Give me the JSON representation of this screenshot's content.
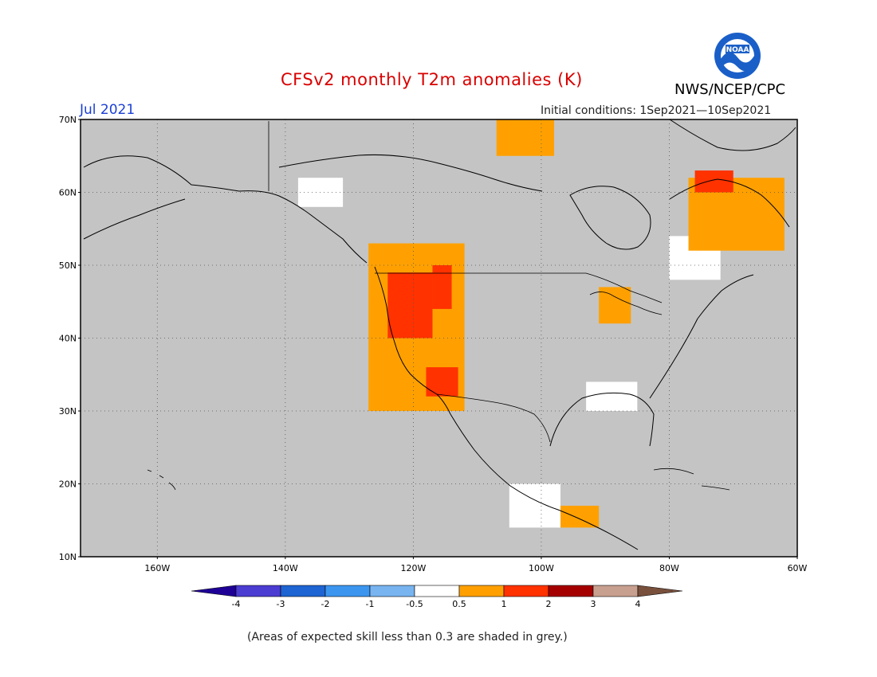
{
  "title": "CFSv2 monthly T2m anomalies (K)",
  "month_label": "Jul 2021",
  "agency": "NWS/NCEP/CPC",
  "logo_text": "NOAA",
  "initial_conditions": "Initial conditions: 1Sep2021—10Sep2021",
  "footnote": "(Areas of expected skill less than 0.3 are shaded in grey.)",
  "map": {
    "lon_range": [
      -172,
      -60
    ],
    "lat_range": [
      10,
      70
    ],
    "lat_ticks": [
      {
        "value": 10,
        "label": "10N"
      },
      {
        "value": 20,
        "label": "20N"
      },
      {
        "value": 30,
        "label": "30N"
      },
      {
        "value": 40,
        "label": "40N"
      },
      {
        "value": 50,
        "label": "50N"
      },
      {
        "value": 60,
        "label": "60N"
      },
      {
        "value": 70,
        "label": "70N"
      }
    ],
    "lon_ticks": [
      {
        "value": -160,
        "label": "160W"
      },
      {
        "value": -140,
        "label": "140W"
      },
      {
        "value": -120,
        "label": "120W"
      },
      {
        "value": -100,
        "label": "100W"
      },
      {
        "value": -80,
        "label": "80W"
      },
      {
        "value": -60,
        "label": "60W"
      }
    ],
    "gridlines": "dotted",
    "colors": {
      "low_skill": "#c4c4c4",
      "neutral": "#ffffff",
      "coast": "#000000"
    },
    "anomaly_patches": [
      {
        "level": "0.5 to 1",
        "color": "#ffa000",
        "lon": [
          -127,
          -112
        ],
        "lat": [
          30,
          53
        ]
      },
      {
        "level": "1 to 2",
        "color": "#ff3200",
        "lon": [
          -124,
          -117
        ],
        "lat": [
          40,
          49
        ]
      },
      {
        "level": "1 to 2",
        "color": "#ff3200",
        "lon": [
          -117,
          -114
        ],
        "lat": [
          44,
          50
        ]
      },
      {
        "level": "1 to 2",
        "color": "#ff3200",
        "lon": [
          -118,
          -113
        ],
        "lat": [
          32,
          36
        ]
      },
      {
        "level": "0.5 to 1",
        "color": "#ffa000",
        "lon": [
          -77,
          -62
        ],
        "lat": [
          52,
          62
        ]
      },
      {
        "level": "1 to 2",
        "color": "#ff3200",
        "lon": [
          -76,
          -70
        ],
        "lat": [
          60,
          63
        ]
      },
      {
        "level": "0.5 to 1",
        "color": "#ffa000",
        "lon": [
          -107,
          -98
        ],
        "lat": [
          65,
          70
        ]
      },
      {
        "level": "0.5 to 1",
        "color": "#ffa000",
        "lon": [
          -91,
          -86
        ],
        "lat": [
          42,
          47
        ]
      },
      {
        "level": "0.5 to 1",
        "color": "#ffa000",
        "lon": [
          -97,
          -91
        ],
        "lat": [
          14,
          17
        ]
      }
    ],
    "neutral_patches": [
      {
        "lon": [
          -80,
          -72
        ],
        "lat": [
          48,
          54
        ]
      },
      {
        "lon": [
          -105,
          -97
        ],
        "lat": [
          14,
          20
        ]
      },
      {
        "lon": [
          -93,
          -85
        ],
        "lat": [
          30,
          34
        ]
      },
      {
        "lon": [
          -138,
          -131
        ],
        "lat": [
          58,
          62
        ]
      }
    ]
  },
  "colorbar": {
    "levels": [
      "-4",
      "-3",
      "-2",
      "-1",
      "-0.5",
      "0.5",
      "1",
      "2",
      "3",
      "4"
    ],
    "colors": [
      "#1e0096",
      "#4b3cd2",
      "#1e64d2",
      "#3c96f0",
      "#78b4f0",
      "#ffffff",
      "#ffa000",
      "#ff3200",
      "#a50000",
      "#c8a090",
      "#78503c"
    ]
  }
}
